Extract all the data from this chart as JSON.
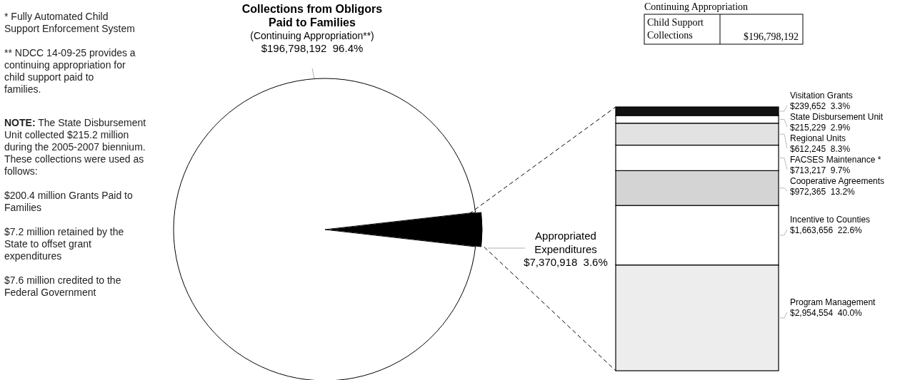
{
  "chart_data": [
    {
      "type": "pie",
      "categories": [
        "Collections from Obligors Paid to Families",
        "Appropriated Expenditures"
      ],
      "values": [
        196798192,
        7370918
      ],
      "colors": [
        "#ffffff",
        "#000000"
      ],
      "value_labels": [
        "$196,798,192  96.4%",
        "$7,370,918  3.6%"
      ],
      "annotations": [
        {
          "text": "(Continuing Appropriation**)",
          "x": "Collections from Obligors Paid to Families"
        },
        "* Fully Automated Child Support Enforcement System",
        "** NDCC 14-09-25 provides a continuing appropriation for child support paid to families.",
        "NOTE: The State Disbursement Unit collected $215.2 million during the 2005-2007 biennium. These collections were used as follows:",
        "$200.4 million Grants Paid to Families",
        "$7.2 million retained by the State to offset grant expenditures",
        "$7.6 million credited to the Federal Government"
      ]
    },
    {
      "type": "bar",
      "stacked": true,
      "categories": [
        null
      ],
      "series": [
        {
          "name": "Program Management",
          "color": "#ededed",
          "values": [
            2954554
          ],
          "value_labels": [
            "$2,954,554  40.0%"
          ]
        },
        {
          "name": "Incentive to Counties",
          "color": "#ffffff",
          "values": [
            1663656
          ],
          "value_labels": [
            "$1,663,656  22.6%"
          ]
        },
        {
          "name": "Cooperative Agreements",
          "color": "#d4d4d4",
          "values": [
            972365
          ],
          "value_labels": [
            "$972,365  13.2%"
          ]
        },
        {
          "name": "FACSES Maintenance *",
          "color": "#ffffff",
          "values": [
            713217
          ],
          "value_labels": [
            "$713,217  9.7%"
          ]
        },
        {
          "name": "Regional Units",
          "color": "#e2e2e2",
          "values": [
            612245
          ],
          "value_labels": [
            "$612,245  8.3%"
          ]
        },
        {
          "name": "State Disbursement Unit",
          "color": "#ffffff",
          "values": [
            215229
          ],
          "value_labels": [
            "$215,229  2.9%"
          ]
        },
        {
          "name": "Visitation Grants",
          "color": "#111111",
          "values": [
            239652
          ],
          "value_labels": [
            "$239,652  3.3%"
          ]
        }
      ],
      "annotations": [
        "Continuing Appropriation",
        "Child Support Collections",
        "$196,798,192"
      ]
    }
  ]
}
